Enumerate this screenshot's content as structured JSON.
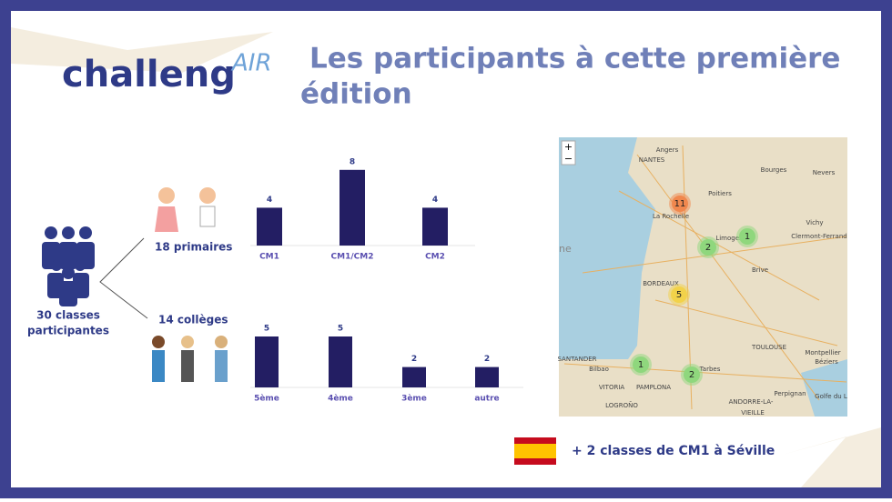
{
  "header": {
    "logo_main": "challeng",
    "logo_accent": "AIR",
    "title_line1": "Les participants à cette première",
    "title_line2": "édition"
  },
  "summary": {
    "line1": "30 classes",
    "line2": "participantes"
  },
  "chart_data": [
    {
      "type": "bar",
      "title": "18 primaires",
      "categories": [
        "CM1",
        "CM1/CM2",
        "CM2"
      ],
      "values": [
        4,
        8,
        4
      ],
      "color": "#231e63"
    },
    {
      "type": "bar",
      "title": "14 collèges",
      "categories": [
        "5ème",
        "4ème",
        "3ème",
        "autre"
      ],
      "values": [
        5,
        5,
        2,
        2
      ],
      "color": "#231e63"
    }
  ],
  "map": {
    "zoom_in": "+",
    "zoom_out": "−",
    "edge_text": "ne",
    "labels": [
      "Angers",
      "NANTES",
      "Poitiers",
      "Bourges",
      "Nevers",
      "La Rochelle",
      "Limoges",
      "Vichy",
      "Clermont-Ferrand",
      "Brive",
      "BORDEAUX",
      "TOULOUSE",
      "Montpellier",
      "Béziers",
      "SANTANDER",
      "Bilbao",
      "VITORIA",
      "PAMPLONA",
      "Tarbes",
      "LOGROÑO",
      "ANDORRE-LA-",
      "VIEILLE",
      "Perpignan",
      "Golfe du L"
    ],
    "clusters": [
      {
        "count": "11",
        "color": "#f0884e"
      },
      {
        "count": "2",
        "color": "#8fd77d"
      },
      {
        "count": "1",
        "color": "#8fd77d"
      },
      {
        "count": "5",
        "color": "#f2d24a"
      },
      {
        "count": "1",
        "color": "#8fd77d"
      },
      {
        "count": "2",
        "color": "#8fd77d"
      }
    ]
  },
  "footer": {
    "text": "+ 2 classes de  CM1 à Séville"
  }
}
